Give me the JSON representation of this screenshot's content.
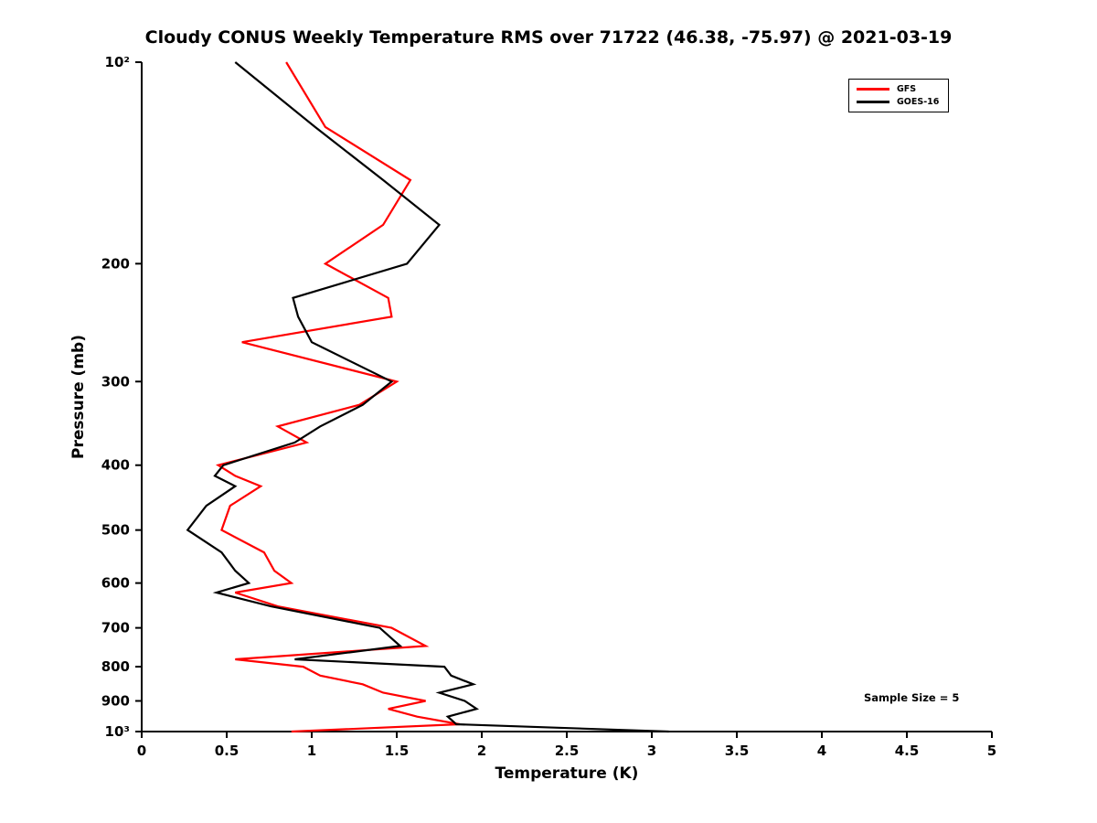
{
  "title": "Cloudy CONUS Weekly Temperature RMS over 71722 (46.38, -75.97) @ 2021-03-19",
  "annotation": {
    "sample_size_label": "Sample Size = 5"
  },
  "legend": [
    {
      "label": "GFS",
      "color": "#ff0000"
    },
    {
      "label": "GOES-16",
      "color": "#000000"
    }
  ],
  "chart_data": {
    "type": "line",
    "title": "Cloudy CONUS Weekly Temperature RMS over 71722 (46.38, -75.97) @ 2021-03-19",
    "xlabel": "Temperature (K)",
    "ylabel": "Pressure (mb)",
    "xlim": [
      0,
      5
    ],
    "ylim": [
      100,
      1000
    ],
    "y_scale": "log10, inverted (100 mb at top, 1000 mb at bottom)",
    "grid": false,
    "legend_position": "upper right",
    "x_ticks": [
      {
        "value": 0,
        "label": "0"
      },
      {
        "value": 0.5,
        "label": "0.5"
      },
      {
        "value": 1,
        "label": "1"
      },
      {
        "value": 1.5,
        "label": "1.5"
      },
      {
        "value": 2,
        "label": "2"
      },
      {
        "value": 2.5,
        "label": "2.5"
      },
      {
        "value": 3,
        "label": "3"
      },
      {
        "value": 3.5,
        "label": "3.5"
      },
      {
        "value": 4,
        "label": "4"
      },
      {
        "value": 4.5,
        "label": "4.5"
      },
      {
        "value": 5,
        "label": "5"
      }
    ],
    "y_ticks": [
      {
        "pressure": 100,
        "label": "10²"
      },
      {
        "pressure": 200,
        "label": "200"
      },
      {
        "pressure": 300,
        "label": "300"
      },
      {
        "pressure": 400,
        "label": "400"
      },
      {
        "pressure": 500,
        "label": "500"
      },
      {
        "pressure": 600,
        "label": "600"
      },
      {
        "pressure": 700,
        "label": "700"
      },
      {
        "pressure": 800,
        "label": "800"
      },
      {
        "pressure": 900,
        "label": "900"
      },
      {
        "pressure": 1000,
        "label": "10³"
      }
    ],
    "pressure_levels_mb": [
      100,
      125,
      150,
      175,
      200,
      225,
      240,
      262,
      300,
      325,
      350,
      370,
      400,
      415,
      430,
      460,
      500,
      540,
      575,
      600,
      620,
      650,
      700,
      745,
      780,
      800,
      825,
      850,
      875,
      900,
      925,
      950,
      975,
      1000
    ],
    "series": [
      {
        "name": "GFS",
        "color": "#ff0000",
        "values": [
          0.85,
          1.08,
          1.58,
          1.42,
          1.08,
          1.45,
          1.47,
          0.59,
          1.5,
          1.28,
          0.8,
          0.97,
          0.45,
          0.55,
          0.7,
          0.52,
          0.47,
          0.72,
          0.78,
          0.88,
          0.55,
          0.8,
          1.47,
          1.67,
          0.55,
          0.95,
          1.05,
          1.3,
          1.42,
          1.67,
          1.45,
          1.62,
          1.87,
          0.88
        ]
      },
      {
        "name": "GOES-16",
        "color": "#000000",
        "values": [
          0.55,
          1.02,
          1.42,
          1.75,
          1.56,
          0.89,
          0.92,
          1.0,
          1.47,
          1.3,
          1.05,
          0.9,
          0.48,
          0.43,
          0.55,
          0.38,
          0.27,
          0.47,
          0.55,
          0.63,
          0.44,
          0.76,
          1.4,
          1.52,
          0.9,
          1.78,
          1.82,
          1.95,
          1.75,
          1.9,
          1.97,
          1.8,
          1.85,
          3.1
        ]
      }
    ],
    "annotation": "Sample Size = 5"
  }
}
